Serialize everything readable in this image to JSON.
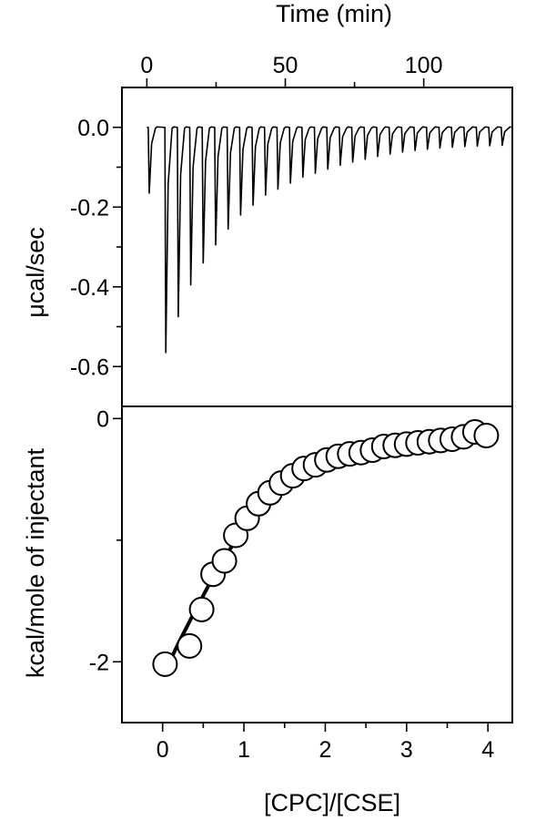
{
  "chart_data": [
    {
      "type": "line",
      "panel": "top",
      "xlabel": "Time (min)",
      "ylabel": "μcal/sec",
      "xlim": [
        -9,
        132
      ],
      "ylim": [
        -0.7,
        0.1
      ],
      "x_ticks": [
        0,
        50,
        100
      ],
      "y_ticks": [
        0.0,
        -0.2,
        -0.4,
        -0.6
      ],
      "y_tick_labels": [
        "0.0",
        "-0.2",
        "-0.4",
        "-0.6"
      ],
      "baseline": 0.0,
      "series": [
        {
          "injection_times_min": [
            0.5,
            6.5,
            11,
            15.5,
            20,
            24.5,
            29,
            33.5,
            38,
            42.5,
            47,
            51.5,
            56,
            60.5,
            65,
            69.5,
            74,
            78.5,
            83,
            87.5,
            92,
            96.5,
            101,
            105.5,
            110,
            114.5,
            119,
            123.5,
            128
          ],
          "peak_values": [
            -0.165,
            -0.565,
            -0.475,
            -0.395,
            -0.34,
            -0.295,
            -0.255,
            -0.22,
            -0.195,
            -0.17,
            -0.155,
            -0.14,
            -0.125,
            -0.115,
            -0.105,
            -0.095,
            -0.087,
            -0.08,
            -0.073,
            -0.067,
            -0.062,
            -0.058,
            -0.055,
            -0.052,
            -0.05,
            -0.048,
            -0.047,
            -0.046,
            -0.045
          ]
        }
      ]
    },
    {
      "type": "scatter",
      "panel": "bottom",
      "xlabel": "[CPC]/[CSE]",
      "ylabel": "kcal/mole of injectant",
      "xlim": [
        -0.5,
        4.3
      ],
      "ylim": [
        -2.5,
        0.1
      ],
      "x_ticks": [
        0,
        1,
        2,
        3,
        4
      ],
      "y_ticks": [
        0,
        -2
      ],
      "y_tick_labels": [
        "0",
        "-2"
      ],
      "series": [
        {
          "x": [
            0.03,
            0.33,
            0.48,
            0.62,
            0.76,
            0.9,
            1.04,
            1.18,
            1.32,
            1.46,
            1.6,
            1.74,
            1.88,
            2.02,
            2.16,
            2.3,
            2.44,
            2.58,
            2.72,
            2.86,
            3.0,
            3.14,
            3.28,
            3.42,
            3.56,
            3.7,
            3.84,
            3.98
          ],
          "y": [
            -2.02,
            -1.87,
            -1.57,
            -1.28,
            -1.17,
            -0.96,
            -0.82,
            -0.7,
            -0.61,
            -0.53,
            -0.47,
            -0.41,
            -0.38,
            -0.34,
            -0.31,
            -0.29,
            -0.28,
            -0.26,
            -0.23,
            -0.22,
            -0.21,
            -0.2,
            -0.19,
            -0.18,
            -0.17,
            -0.15,
            -0.11,
            -0.14
          ]
        }
      ],
      "fit_curve": {
        "x": [
          0.0,
          0.2,
          0.4,
          0.6,
          0.8,
          1.0,
          1.2,
          1.4,
          1.6,
          1.8,
          2.0,
          2.2,
          2.4,
          2.6,
          2.8,
          3.0,
          3.2,
          3.4,
          3.6,
          3.8,
          4.0
        ],
        "y": [
          -2.12,
          -1.84,
          -1.58,
          -1.33,
          -1.1,
          -0.91,
          -0.76,
          -0.64,
          -0.54,
          -0.46,
          -0.4,
          -0.35,
          -0.31,
          -0.28,
          -0.25,
          -0.23,
          -0.21,
          -0.19,
          -0.17,
          -0.16,
          -0.15
        ]
      }
    }
  ]
}
